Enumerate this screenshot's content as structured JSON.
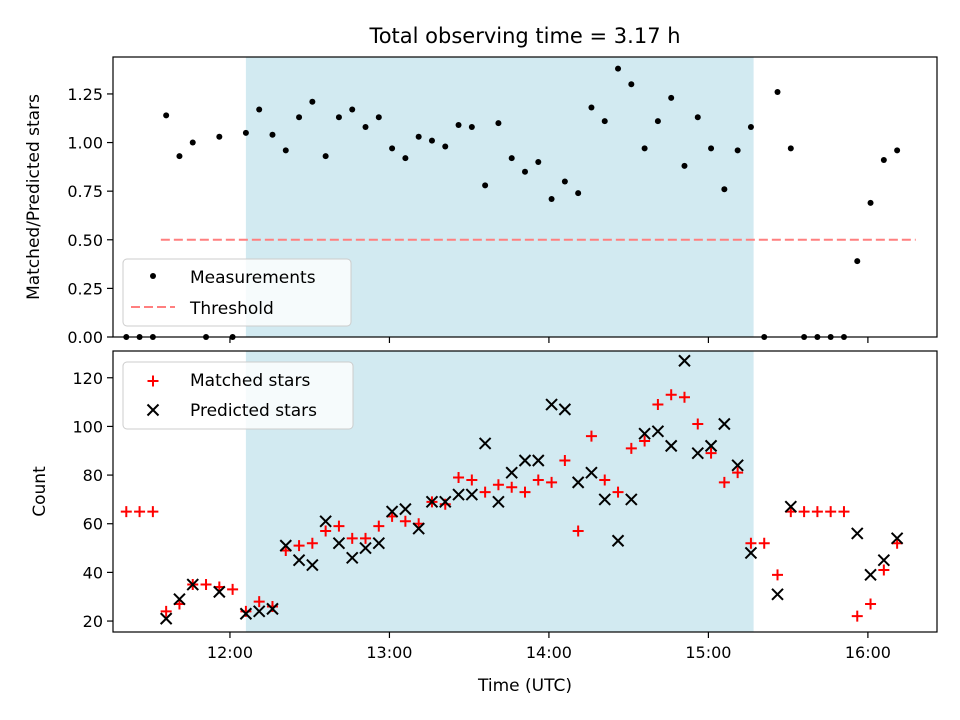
{
  "title": "Total observing time = 3.17 h",
  "colors": {
    "shade": "#add8e6",
    "measurement": "#000000",
    "threshold": "#ff7f7f",
    "matched": "#ff0000",
    "predicted": "#000000"
  },
  "chart_data": [
    {
      "type": "scatter",
      "ylabel": "Matched/Predicted stars",
      "ylim": [
        0,
        1.44
      ],
      "yticks": [
        0.0,
        0.25,
        0.5,
        0.75,
        1.0,
        1.25
      ],
      "ytick_labels": [
        "0.00",
        "0.25",
        "0.50",
        "0.75",
        "1.00",
        "1.25"
      ],
      "xlim": [
        "11:16",
        "16:26"
      ],
      "shaded_interval": [
        "12:06",
        "15:17"
      ],
      "legend": {
        "position": "lower-left",
        "labels": [
          "Measurements",
          "Threshold"
        ]
      },
      "threshold": {
        "name": "Threshold",
        "value": 0.5,
        "x": [
          "11:34",
          "16:18"
        ]
      },
      "series": [
        {
          "name": "Measurements",
          "marker": "dot",
          "x": [
            "11:21",
            "11:26",
            "11:31",
            "11:36",
            "11:41",
            "11:46",
            "11:51",
            "11:56",
            "12:01",
            "12:06",
            "12:11",
            "12:16",
            "12:21",
            "12:26",
            "12:31",
            "12:36",
            "12:41",
            "12:46",
            "12:51",
            "12:56",
            "13:01",
            "13:06",
            "13:11",
            "13:16",
            "13:21",
            "13:26",
            "13:31",
            "13:36",
            "13:41",
            "13:46",
            "13:51",
            "13:56",
            "14:01",
            "14:06",
            "14:11",
            "14:16",
            "14:21",
            "14:26",
            "14:31",
            "14:36",
            "14:41",
            "14:46",
            "14:51",
            "14:56",
            "15:01",
            "15:06",
            "15:11",
            "15:16",
            "15:21",
            "15:26",
            "15:31",
            "15:36",
            "15:41",
            "15:46",
            "15:51",
            "15:56",
            "16:01",
            "16:06",
            "16:11"
          ],
          "y": [
            0.0,
            0.0,
            0.0,
            1.14,
            0.93,
            1.0,
            0.0,
            1.03,
            0.0,
            1.05,
            1.17,
            1.04,
            0.96,
            1.13,
            1.21,
            0.93,
            1.13,
            1.17,
            1.08,
            1.13,
            0.97,
            0.92,
            1.03,
            1.01,
            0.98,
            1.09,
            1.08,
            0.78,
            1.1,
            0.92,
            0.85,
            0.9,
            0.71,
            0.8,
            0.74,
            1.18,
            1.11,
            1.38,
            1.3,
            0.97,
            1.11,
            1.23,
            0.88,
            1.13,
            0.97,
            0.76,
            0.96,
            1.08,
            0.0,
            1.26,
            0.97,
            0.0,
            0.0,
            0.0,
            0.0,
            0.39,
            0.69,
            0.91,
            0.96
          ]
        }
      ]
    },
    {
      "type": "scatter",
      "xlabel": "Time (UTC)",
      "ylabel": "Count",
      "ylim": [
        15.5,
        131
      ],
      "yticks": [
        20,
        40,
        60,
        80,
        100,
        120
      ],
      "ytick_labels": [
        "20",
        "40",
        "60",
        "80",
        "100",
        "120"
      ],
      "xlim": [
        "11:16",
        "16:26"
      ],
      "xticks": [
        "12:00",
        "13:00",
        "14:00",
        "15:00",
        "16:00"
      ],
      "xtick_labels": [
        "12:00",
        "13:00",
        "14:00",
        "15:00",
        "16:00"
      ],
      "shaded_interval": [
        "12:06",
        "15:17"
      ],
      "legend": {
        "position": "upper-left",
        "labels": [
          "Matched stars",
          "Predicted stars"
        ]
      },
      "series": [
        {
          "name": "Matched stars",
          "marker": "plus",
          "x": [
            "11:21",
            "11:26",
            "11:31",
            "11:36",
            "11:41",
            "11:46",
            "11:51",
            "11:56",
            "12:01",
            "12:06",
            "12:11",
            "12:16",
            "12:21",
            "12:26",
            "12:31",
            "12:36",
            "12:41",
            "12:46",
            "12:51",
            "12:56",
            "13:01",
            "13:06",
            "13:11",
            "13:16",
            "13:21",
            "13:26",
            "13:31",
            "13:36",
            "13:41",
            "13:46",
            "13:51",
            "13:56",
            "14:01",
            "14:06",
            "14:11",
            "14:16",
            "14:21",
            "14:26",
            "14:31",
            "14:36",
            "14:41",
            "14:46",
            "14:51",
            "14:56",
            "15:01",
            "15:06",
            "15:11",
            "15:16",
            "15:21",
            "15:26",
            "15:31",
            "15:36",
            "15:41",
            "15:46",
            "15:51",
            "15:56",
            "16:01",
            "16:06",
            "16:11"
          ],
          "y": [
            65,
            65,
            65,
            24,
            27,
            35,
            35,
            34,
            33,
            24,
            28,
            26,
            49,
            51,
            52,
            57,
            59,
            54,
            54,
            59,
            63,
            61,
            60,
            69,
            68,
            79,
            78,
            73,
            76,
            75,
            73,
            78,
            77,
            86,
            57,
            96,
            78,
            73,
            91,
            94,
            109,
            113,
            112,
            101,
            89,
            77,
            81,
            52,
            52,
            39,
            65,
            65,
            65,
            65,
            65,
            22,
            27,
            41,
            52
          ]
        },
        {
          "name": "Predicted stars",
          "marker": "x",
          "x": [
            "11:36",
            "11:41",
            "11:46",
            "11:56",
            "12:06",
            "12:11",
            "12:16",
            "12:21",
            "12:26",
            "12:31",
            "12:36",
            "12:41",
            "12:46",
            "12:51",
            "12:56",
            "13:01",
            "13:06",
            "13:11",
            "13:16",
            "13:21",
            "13:26",
            "13:31",
            "13:36",
            "13:41",
            "13:46",
            "13:51",
            "13:56",
            "14:01",
            "14:06",
            "14:11",
            "14:16",
            "14:21",
            "14:26",
            "14:31",
            "14:36",
            "14:41",
            "14:46",
            "14:51",
            "14:56",
            "15:01",
            "15:06",
            "15:11",
            "15:16",
            "15:26",
            "15:31",
            "15:56",
            "16:01",
            "16:06",
            "16:11"
          ],
          "y": [
            21,
            29,
            35,
            32,
            23,
            24,
            25,
            51,
            45,
            43,
            61,
            52,
            46,
            50,
            52,
            65,
            66,
            58,
            69,
            69,
            72,
            72,
            93,
            69,
            81,
            86,
            86,
            109,
            107,
            77,
            81,
            70,
            53,
            70,
            97,
            98,
            92,
            127,
            89,
            92,
            101,
            84,
            48,
            31,
            67,
            56,
            39,
            45,
            54
          ]
        }
      ]
    }
  ]
}
